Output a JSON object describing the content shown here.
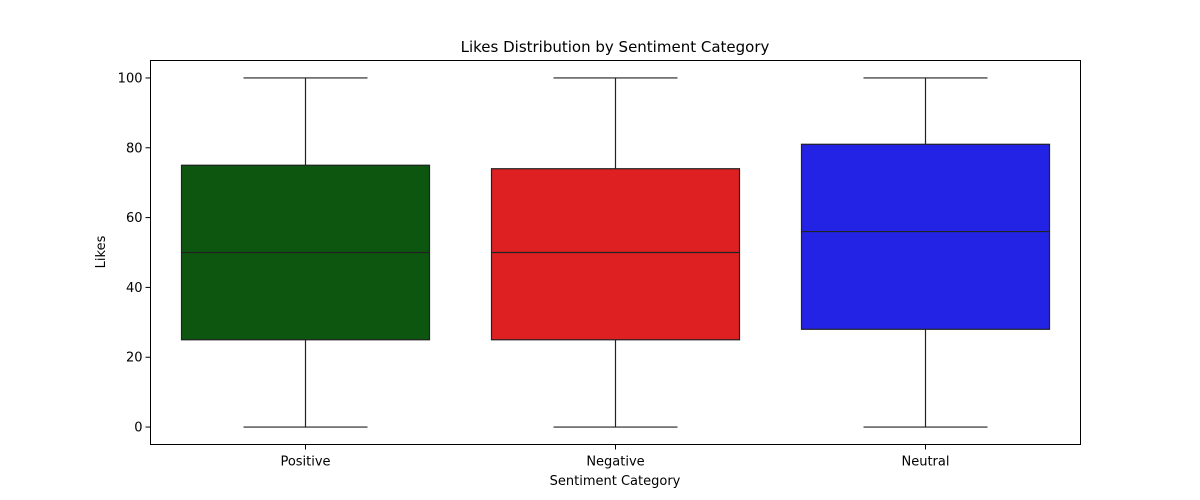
{
  "chart_data": {
    "type": "box",
    "title": "Likes Distribution by Sentiment Category",
    "xlabel": "Sentiment Category",
    "ylabel": "Likes",
    "ylim": [
      -5,
      105
    ],
    "yticks": [
      0,
      20,
      40,
      60,
      80,
      100
    ],
    "grid": false,
    "categories": [
      "Positive",
      "Negative",
      "Neutral"
    ],
    "boxes": [
      {
        "category": "Positive",
        "min": 0,
        "q1": 25,
        "median": 50,
        "q3": 75,
        "max": 100,
        "color": "#0d5610"
      },
      {
        "category": "Negative",
        "min": 0,
        "q1": 25,
        "median": 50,
        "q3": 74,
        "max": 100,
        "color": "#df2022"
      },
      {
        "category": "Neutral",
        "min": 0,
        "q1": 28,
        "median": 56,
        "q3": 81,
        "max": 100,
        "color": "#2223e4"
      }
    ]
  }
}
